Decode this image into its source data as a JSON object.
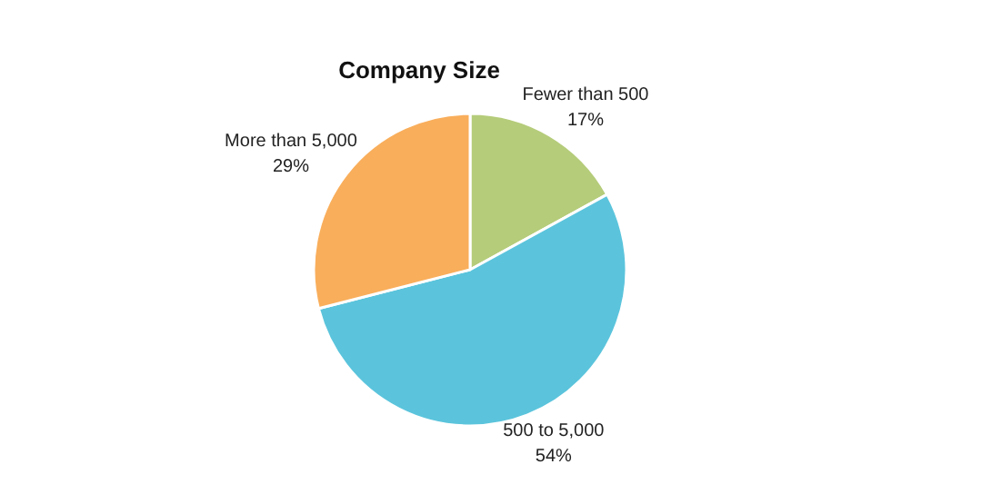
{
  "chart_data": {
    "type": "pie",
    "title": "Company Size",
    "categories": [
      "Fewer than 500",
      "500 to 5,000",
      "More than 5,000"
    ],
    "values": [
      17,
      54,
      29
    ],
    "colors": [
      "#b5cc7a",
      "#5bc4dc",
      "#f9ae5b"
    ],
    "value_labels": [
      "17%",
      "54%",
      "29%"
    ]
  }
}
